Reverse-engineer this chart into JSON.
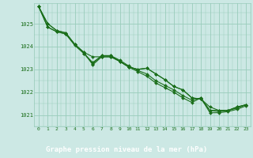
{
  "xlabel": "Graphe pression niveau de la mer (hPa)",
  "bg_color": "#cce8e4",
  "plot_bg_color": "#cce8e4",
  "label_bg_color": "#339933",
  "grid_color": "#99ccbb",
  "line_color": "#1a6e1a",
  "marker_color": "#1a6e1a",
  "label_text_color": "#ffffff",
  "tick_color": "#1a6e1a",
  "ylim": [
    1020.5,
    1025.9
  ],
  "xlim": [
    -0.5,
    23.5
  ],
  "yticks": [
    1021,
    1022,
    1023,
    1024,
    1025
  ],
  "xticks": [
    0,
    1,
    2,
    3,
    4,
    5,
    6,
    7,
    8,
    9,
    10,
    11,
    12,
    13,
    14,
    15,
    16,
    17,
    18,
    19,
    20,
    21,
    22,
    23
  ],
  "series": [
    [
      1025.75,
      1025.0,
      1024.7,
      1024.6,
      1024.1,
      1023.75,
      1023.2,
      1023.55,
      1023.55,
      1023.35,
      1023.1,
      1023.0,
      1023.05,
      1022.8,
      1022.55,
      1022.25,
      1022.1,
      1021.75,
      1021.7,
      1021.2,
      1021.2,
      1021.2,
      1021.35,
      1021.45
    ],
    [
      1025.75,
      1025.0,
      1024.7,
      1024.6,
      1024.1,
      1023.75,
      1023.55,
      1023.55,
      1023.55,
      1023.35,
      1023.1,
      1023.0,
      1023.05,
      1022.8,
      1022.55,
      1022.25,
      1022.1,
      1021.75,
      1021.7,
      1021.35,
      1021.2,
      1021.2,
      1021.35,
      1021.45
    ],
    [
      1025.75,
      1024.85,
      1024.65,
      1024.55,
      1024.1,
      1023.7,
      1023.3,
      1023.6,
      1023.6,
      1023.4,
      1023.15,
      1022.95,
      1022.8,
      1022.5,
      1022.3,
      1022.1,
      1021.85,
      1021.65,
      1021.75,
      1021.2,
      1021.15,
      1021.2,
      1021.3,
      1021.45
    ],
    [
      1025.75,
      1024.85,
      1024.65,
      1024.55,
      1024.05,
      1023.7,
      1023.25,
      1023.6,
      1023.6,
      1023.35,
      1023.1,
      1022.9,
      1022.7,
      1022.4,
      1022.2,
      1022.0,
      1021.75,
      1021.55,
      1021.75,
      1021.1,
      1021.1,
      1021.15,
      1021.25,
      1021.4
    ]
  ]
}
